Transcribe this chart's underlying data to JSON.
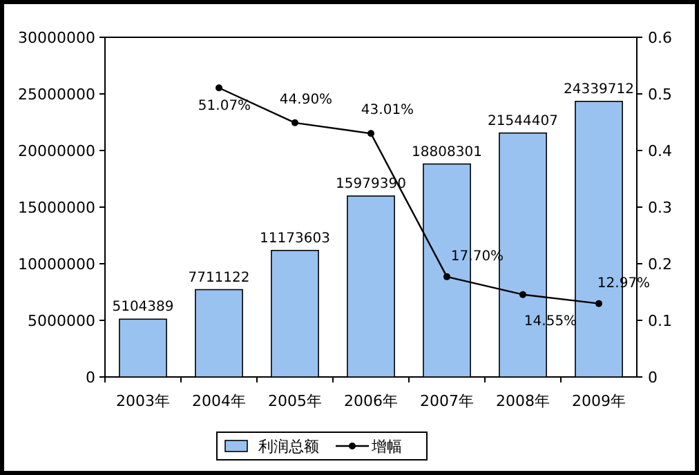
{
  "chart_data": {
    "type": "bar",
    "categories": [
      "2003年",
      "2004年",
      "2005年",
      "2006年",
      "2007年",
      "2008年",
      "2009年"
    ],
    "series": [
      {
        "name": "利润总额",
        "color": "#99c2f0",
        "values": [
          5104389,
          7711122,
          11173603,
          15979390,
          18808301,
          21544407,
          24339712
        ],
        "value_labels": [
          "5104389",
          "7711122",
          "11173603",
          "15979390",
          "18808301",
          "21544407",
          "24339712"
        ]
      },
      {
        "name": "增幅",
        "type": "line",
        "axis": "y2",
        "color": "#000000",
        "marker": "circle",
        "values": [
          null,
          0.5107,
          0.449,
          0.4301,
          0.177,
          0.1455,
          0.1297
        ],
        "value_labels": [
          null,
          "51.07%",
          "44.90%",
          "43.01%",
          "17.70%",
          "14.55%",
          "12.97%"
        ]
      }
    ],
    "ylim": [
      0,
      30000000
    ],
    "yticks": [
      0,
      5000000,
      10000000,
      15000000,
      20000000,
      25000000,
      30000000
    ],
    "y2lim": [
      0,
      0.6
    ],
    "y2ticks": [
      0,
      0.1,
      0.2,
      0.3,
      0.4,
      0.5,
      0.6
    ],
    "legend": "bottom",
    "grid": false
  }
}
